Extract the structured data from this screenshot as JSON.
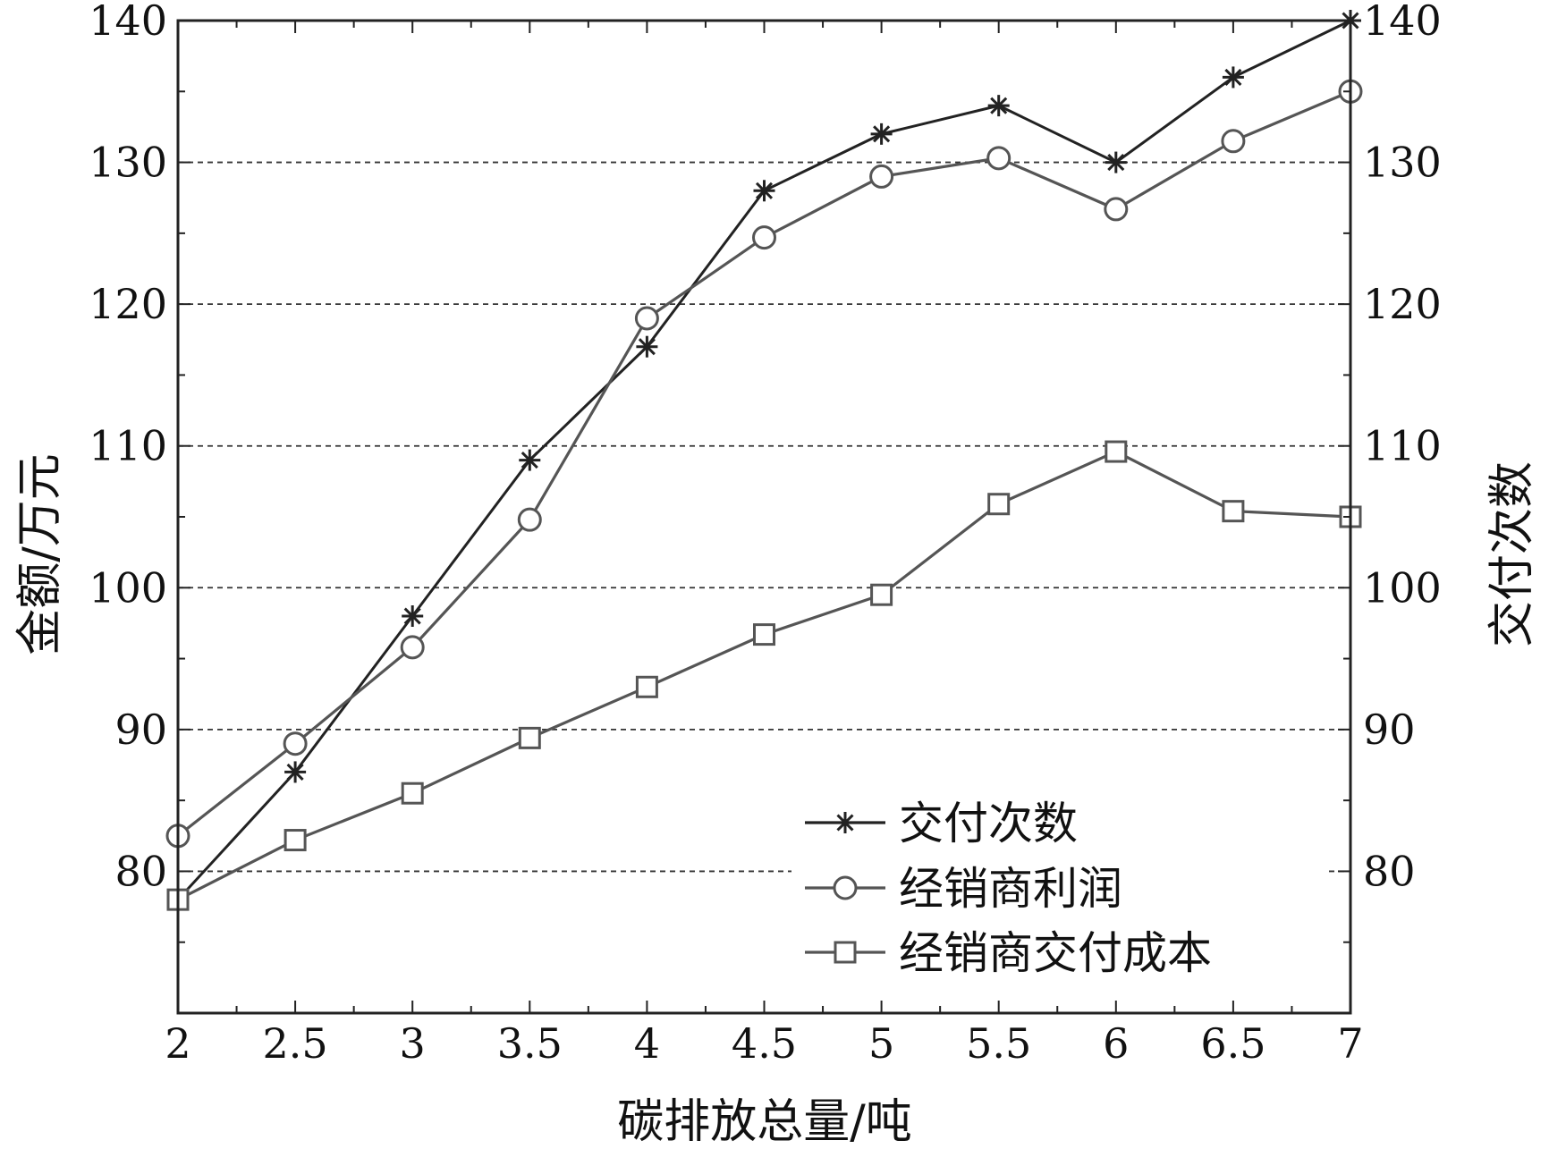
{
  "chart_data": {
    "type": "line",
    "xlabel": "碳排放总量/吨",
    "ylabel_left": "金额/万元",
    "ylabel_right": "交付次数",
    "x": [
      2,
      2.5,
      3,
      3.5,
      4,
      4.5,
      5,
      5.5,
      6,
      6.5,
      7
    ],
    "x_tick_labels": [
      "2",
      "2.5",
      "3",
      "3.5",
      "4",
      "4.5",
      "5",
      "5.5",
      "6",
      "6.5",
      "7"
    ],
    "xlim": [
      2,
      7
    ],
    "ylim": [
      70,
      140
    ],
    "y_ticks": [
      80,
      90,
      100,
      110,
      120,
      130,
      140
    ],
    "y_tick_labels": [
      "80",
      "90",
      "100",
      "110",
      "120",
      "130",
      "140"
    ],
    "y_right_ticks": [
      80,
      90,
      100,
      110,
      120,
      130,
      140
    ],
    "y_right_tick_labels": [
      "80",
      "90",
      "100",
      "110",
      "120",
      "130",
      "140"
    ],
    "grid": "horizontal-dashed",
    "legend_position": "bottom-right",
    "series": [
      {
        "name": "交付次数",
        "marker": "star",
        "axis": "right",
        "color": "#222222",
        "values": [
          78,
          87,
          98,
          109,
          117,
          128,
          132,
          134,
          130,
          136,
          140
        ]
      },
      {
        "name": "经销商利润",
        "marker": "circle",
        "axis": "left",
        "color": "#555555",
        "values": [
          82.5,
          89,
          95.8,
          104.8,
          119,
          124.7,
          129,
          130.3,
          126.7,
          131.5,
          135
        ]
      },
      {
        "name": "经销商交付成本",
        "marker": "square",
        "axis": "left",
        "color": "#555555",
        "values": [
          78,
          82.2,
          85.5,
          89.4,
          93,
          96.7,
          99.5,
          105.9,
          109.6,
          105.4,
          105
        ]
      }
    ]
  }
}
